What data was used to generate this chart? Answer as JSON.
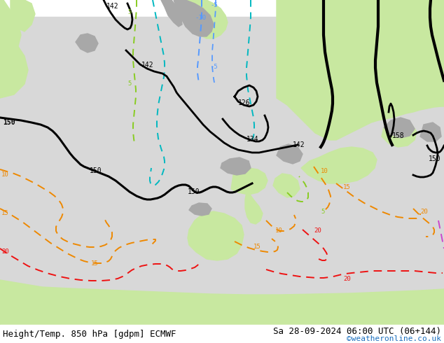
{
  "title_left": "Height/Temp. 850 hPa [gdpm] ECMWF",
  "title_right": "Sa 28-09-2024 06:00 UTC (06+144)",
  "credit": "©weatheronline.co.uk",
  "credit_color": "#1a6fbf",
  "sea_color": "#d8d8d8",
  "land_green": "#c8e8a0",
  "land_gray": "#a8a8a8",
  "land_light_gray": "#c0c0b8",
  "black_lw": 2.0,
  "temp_lw": 1.4,
  "cyan_color": "#00b8c0",
  "blue_color": "#5599ff",
  "green_color": "#88cc22",
  "orange_color": "#ee8800",
  "red_color": "#ee1111",
  "magenta_color": "#cc44cc",
  "title_fontsize": 9,
  "credit_fontsize": 8
}
